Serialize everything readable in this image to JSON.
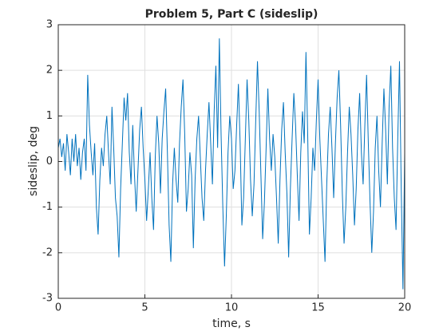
{
  "chart_data": {
    "type": "line",
    "title": "Problem 5, Part C (sideslip)",
    "xlabel": "time, s",
    "ylabel": "sideslip, deg",
    "xlim": [
      0,
      20
    ],
    "ylim": [
      -3,
      3
    ],
    "xticks": [
      0,
      5,
      10,
      15,
      20
    ],
    "yticks": [
      -3,
      -2,
      -1,
      0,
      1,
      2,
      3
    ],
    "grid": true,
    "x": [
      0,
      0.1,
      0.2,
      0.3,
      0.4,
      0.5,
      0.6,
      0.7,
      0.8,
      0.9,
      1,
      1.1,
      1.2,
      1.3,
      1.4,
      1.5,
      1.6,
      1.7,
      1.8,
      1.9,
      2,
      2.1,
      2.2,
      2.3,
      2.4,
      2.5,
      2.6,
      2.7,
      2.8,
      2.9,
      3,
      3.1,
      3.2,
      3.3,
      3.4,
      3.5,
      3.6,
      3.7,
      3.8,
      3.9,
      4,
      4.1,
      4.2,
      4.3,
      4.4,
      4.5,
      4.6,
      4.7,
      4.8,
      4.9,
      5,
      5.1,
      5.2,
      5.3,
      5.4,
      5.5,
      5.6,
      5.7,
      5.8,
      5.9,
      6,
      6.1,
      6.2,
      6.3,
      6.4,
      6.5,
      6.6,
      6.7,
      6.8,
      6.9,
      7,
      7.1,
      7.2,
      7.3,
      7.4,
      7.5,
      7.6,
      7.7,
      7.8,
      7.9,
      8,
      8.1,
      8.2,
      8.3,
      8.4,
      8.5,
      8.6,
      8.7,
      8.8,
      8.9,
      9,
      9.1,
      9.2,
      9.3,
      9.4,
      9.5,
      9.6,
      9.7,
      9.8,
      9.9,
      10,
      10.1,
      10.2,
      10.3,
      10.4,
      10.5,
      10.6,
      10.7,
      10.8,
      10.9,
      11,
      11.1,
      11.2,
      11.3,
      11.4,
      11.5,
      11.6,
      11.7,
      11.8,
      11.9,
      12,
      12.1,
      12.2,
      12.3,
      12.4,
      12.5,
      12.6,
      12.7,
      12.8,
      12.9,
      13,
      13.1,
      13.2,
      13.3,
      13.4,
      13.5,
      13.6,
      13.7,
      13.8,
      13.9,
      14,
      14.1,
      14.2,
      14.3,
      14.4,
      14.5,
      14.6,
      14.7,
      14.8,
      14.9,
      15,
      15.1,
      15.2,
      15.3,
      15.4,
      15.5,
      15.6,
      15.7,
      15.8,
      15.9,
      16,
      16.1,
      16.2,
      16.3,
      16.4,
      16.5,
      16.6,
      16.7,
      16.8,
      16.9,
      17,
      17.1,
      17.2,
      17.3,
      17.4,
      17.5,
      17.6,
      17.7,
      17.8,
      17.9,
      18,
      18.1,
      18.2,
      18.3,
      18.4,
      18.5,
      18.6,
      18.7,
      18.8,
      18.9,
      19,
      19.1,
      19.2,
      19.3,
      19.4,
      19.5,
      19.6,
      19.7,
      19.8,
      19.9,
      20
    ],
    "series": [
      {
        "color": "#0072bd",
        "values": [
          0.3,
          0.5,
          0.1,
          0.4,
          -0.2,
          0.6,
          0.2,
          -0.3,
          0.5,
          0.0,
          0.6,
          -0.1,
          0.3,
          -0.4,
          0.2,
          0.5,
          -0.2,
          1.9,
          0.8,
          0.2,
          -0.3,
          0.4,
          -1.0,
          -1.6,
          -0.4,
          0.3,
          -0.1,
          0.6,
          1.0,
          0.2,
          -0.5,
          1.2,
          0.3,
          -0.8,
          -1.2,
          -2.1,
          -0.6,
          0.4,
          1.4,
          0.9,
          1.5,
          0.2,
          -0.5,
          0.8,
          -0.3,
          -1.1,
          -0.2,
          0.7,
          1.2,
          0.3,
          -0.4,
          -1.3,
          -0.6,
          0.2,
          -0.8,
          -1.5,
          0.1,
          1.0,
          0.4,
          -0.7,
          0.5,
          1.1,
          1.6,
          0.2,
          -1.4,
          -2.2,
          -0.5,
          0.3,
          -0.4,
          -0.9,
          0.4,
          1.2,
          1.8,
          0.6,
          -1.1,
          -0.6,
          0.2,
          -0.3,
          -1.9,
          -0.4,
          0.5,
          1.0,
          0.1,
          -0.8,
          -1.3,
          -0.2,
          0.6,
          1.3,
          0.4,
          -0.5,
          1.1,
          2.1,
          0.3,
          2.7,
          0.6,
          -1.0,
          -2.3,
          -1.2,
          0.2,
          1.0,
          0.5,
          -0.6,
          -0.2,
          0.8,
          1.7,
          0.4,
          -1.4,
          -0.8,
          0.5,
          1.8,
          0.9,
          -0.4,
          -1.2,
          -0.5,
          0.9,
          2.2,
          1.1,
          -0.3,
          -1.7,
          -0.9,
          0.3,
          1.6,
          0.5,
          -0.2,
          0.6,
          0.1,
          -0.8,
          -1.8,
          -0.4,
          0.7,
          1.3,
          0.2,
          -0.7,
          -2.1,
          -0.6,
          0.5,
          1.5,
          0.8,
          -0.3,
          -1.3,
          0.2,
          1.1,
          0.4,
          2.4,
          0.6,
          -1.6,
          -0.8,
          0.3,
          -0.2,
          0.9,
          1.8,
          0.5,
          -0.4,
          -1.3,
          -2.2,
          -0.5,
          0.6,
          1.2,
          0.3,
          -0.8,
          0.4,
          1.4,
          2.0,
          0.8,
          -0.7,
          -1.8,
          -1.0,
          0.2,
          1.2,
          0.6,
          -0.3,
          -1.4,
          -0.6,
          0.7,
          1.5,
          0.2,
          -0.5,
          0.8,
          1.9,
          0.4,
          -0.9,
          -2.0,
          -1.1,
          0.3,
          1.0,
          -0.2,
          -1.0,
          0.4,
          1.6,
          0.7,
          -0.5,
          1.2,
          2.1,
          0.3,
          -0.8,
          -1.5,
          0.5,
          2.2,
          -0.6,
          -2.8,
          0.2
        ]
      }
    ]
  }
}
